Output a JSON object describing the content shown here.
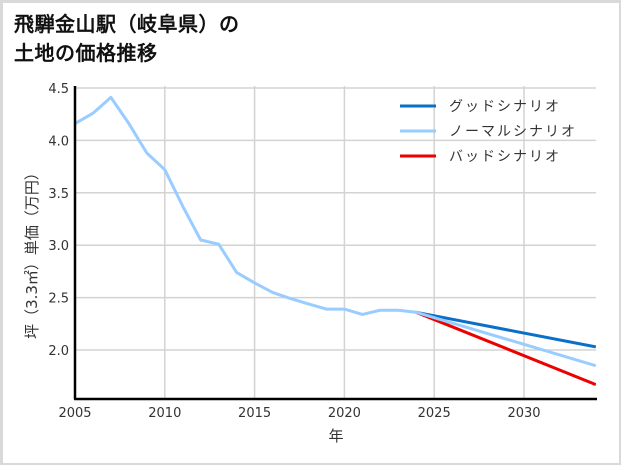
{
  "title_line1": "飛騨金山駅（岐阜県）の",
  "title_line2": "土地の価格推移",
  "chart_data": {
    "type": "line",
    "title": "飛騨金山駅（岐阜県）の土地の価格推移",
    "xlabel": "年",
    "ylabel": "坪（3.3㎡）単価（万円）",
    "xlim": [
      2005,
      2034
    ],
    "ylim": [
      1.65,
      4.5
    ],
    "x_ticks": [
      2005,
      2010,
      2015,
      2020,
      2025,
      2030
    ],
    "y_ticks": [
      2.0,
      2.5,
      3.0,
      3.5,
      4.0,
      4.5
    ],
    "x_tick_labels": [
      "2005",
      "2010",
      "2015",
      "2020",
      "2025",
      "2030"
    ],
    "y_tick_labels": [
      "2.0",
      "2.5",
      "3.0",
      "3.5",
      "4.0",
      "4.5"
    ],
    "grid": true,
    "legend_position": "upper right",
    "series": [
      {
        "name": "グッドシナリオ",
        "color": "#0a6fc8",
        "x": [
          2024,
          2034
        ],
        "values": [
          2.36,
          2.03
        ]
      },
      {
        "name": "ノーマルシナリオ",
        "color": "#99ccff",
        "x": [
          2005,
          2006,
          2007,
          2008,
          2009,
          2010,
          2011,
          2012,
          2013,
          2014,
          2015,
          2016,
          2017,
          2018,
          2019,
          2020,
          2021,
          2022,
          2023,
          2024,
          2034
        ],
        "values": [
          4.16,
          4.26,
          4.41,
          4.16,
          3.88,
          3.72,
          3.37,
          3.05,
          3.01,
          2.74,
          2.64,
          2.55,
          2.49,
          2.44,
          2.39,
          2.39,
          2.34,
          2.38,
          2.38,
          2.36,
          1.85
        ]
      },
      {
        "name": "バッドシナリオ",
        "color": "#ee0000",
        "x": [
          2024,
          2034
        ],
        "values": [
          2.36,
          1.67
        ]
      }
    ]
  }
}
